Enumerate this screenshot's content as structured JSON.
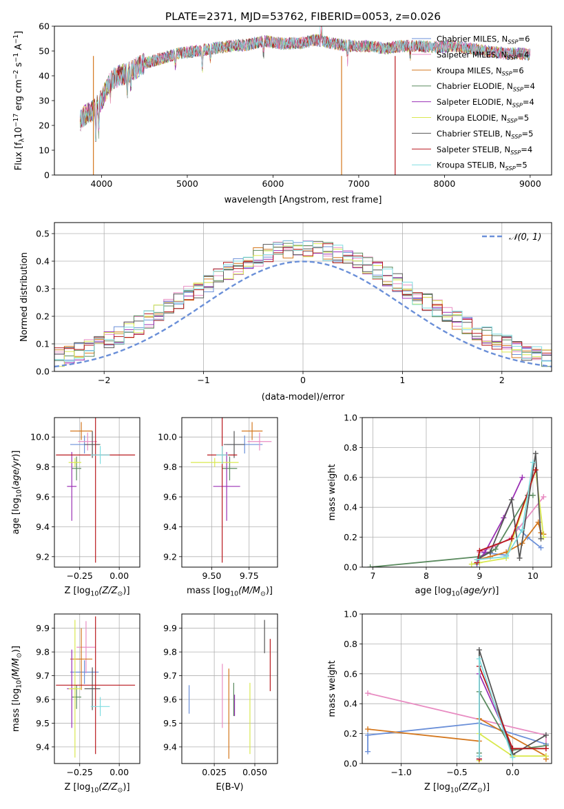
{
  "figure": {
    "title": "PLATE=2371, MJD=53762, FIBERID=0053, z=0.026"
  },
  "legend": [
    {
      "label": "Chabrier MILES, N",
      "sub": "SSP",
      "tail": "=6",
      "color": "#6a8fd8"
    },
    {
      "label": "Salpeter MILES, N",
      "sub": "SSP",
      "tail": "=4",
      "color": "#e88cc2"
    },
    {
      "label": "Kroupa MILES, N",
      "sub": "SSP",
      "tail": "=6",
      "color": "#d4771d"
    },
    {
      "label": "Chabrier ELODIE, N",
      "sub": "SSP",
      "tail": "=4",
      "color": "#5a8a5e"
    },
    {
      "label": "Salpeter ELODIE, N",
      "sub": "SSP",
      "tail": "=4",
      "color": "#9a2fb4"
    },
    {
      "label": "Kroupa ELODIE, N",
      "sub": "SSP",
      "tail": "=5",
      "color": "#d9e84e"
    },
    {
      "label": "Chabrier STELIB, N",
      "sub": "SSP",
      "tail": "=5",
      "color": "#555555"
    },
    {
      "label": "Salpeter STELIB, N",
      "sub": "SSP",
      "tail": "=4",
      "color": "#b8161b"
    },
    {
      "label": "Kroupa STELIB, N",
      "sub": "SSP",
      "tail": "=5",
      "color": "#7fdde0"
    }
  ],
  "chart_data": [
    {
      "id": "spectrum",
      "type": "line",
      "xlabel": "wavelength [Angstrom, rest frame]",
      "ylabel_parts": [
        "Flux [f",
        "λ",
        "10",
        "−17",
        " erg cm",
        "−2",
        " s",
        "−1",
        " A",
        "−1",
        "]"
      ],
      "xlim": [
        3450,
        9250
      ],
      "ylim": [
        0,
        60
      ],
      "xticks": [
        4000,
        5000,
        6000,
        7000,
        8000,
        9000
      ],
      "yticks": [
        0,
        10,
        20,
        30,
        40,
        50,
        60
      ],
      "continuum_x": [
        3750,
        3800,
        3900,
        4000,
        4100,
        4200,
        4300,
        4500,
        4700,
        4900,
        5100,
        5300,
        5500,
        5700,
        5900,
        6100,
        6300,
        6500,
        6700,
        6900,
        7100,
        7300,
        7500,
        7700,
        7900,
        8100,
        8300,
        8500,
        8700,
        8900,
        9000
      ],
      "continuum_y": [
        22,
        24,
        26,
        30,
        38,
        40,
        41,
        45,
        47,
        49,
        50,
        51,
        52,
        52.5,
        54,
        53,
        53,
        54.5,
        53,
        52,
        52,
        51,
        52,
        52,
        51.5,
        52,
        51,
        50,
        49,
        49,
        48.5
      ],
      "drops": [
        {
          "x": 3905,
          "y": 0
        },
        {
          "x": 6800,
          "y": 0
        },
        {
          "x": 7425,
          "y": 0
        }
      ],
      "peak": {
        "x": 6563,
        "y": 62
      }
    },
    {
      "id": "residuals",
      "type": "histogram",
      "xlabel": "(data-model)/error",
      "ylabel": "Normed distribution",
      "xlim": [
        -2.5,
        2.5
      ],
      "ylim": [
        0,
        0.54
      ],
      "xticks": [
        -2,
        -1,
        0,
        1,
        2
      ],
      "xtick_labels": [
        "−2",
        "−1",
        "0",
        "1",
        "2"
      ],
      "yticks": [
        0,
        0.1,
        0.2,
        0.3,
        0.4,
        0.5
      ],
      "ytick_labels": [
        "0.0",
        "0.1",
        "0.2",
        "0.3",
        "0.4",
        "0.5"
      ],
      "bin_width": 0.1,
      "legend_label": "𝒩(0, 1)"
    },
    {
      "id": "age_vs_Z",
      "type": "errorbar",
      "xlabel_parts": [
        "Z [log",
        "10",
        "(Z/Z",
        "⊙",
        ")]"
      ],
      "ylabel_parts": [
        "age  [log",
        "10",
        "(",
        "age/yr",
        ")]"
      ],
      "xlim": [
        -0.41,
        0.13
      ],
      "ylim": [
        9.13,
        10.13
      ],
      "xticks": [
        -0.25,
        0.0
      ],
      "xtick_labels": [
        "−0.25",
        "0.00"
      ],
      "yticks": [
        9.2,
        9.4,
        9.6,
        9.8,
        10.0
      ],
      "ytick_labels": [
        "9.2",
        "9.4",
        "9.6",
        "9.8",
        "10.0"
      ],
      "points": [
        {
          "x": -0.22,
          "xerr": 0.09,
          "y": 9.95,
          "yerr": 0.06
        },
        {
          "x": -0.2,
          "xerr": 0.06,
          "y": 9.97,
          "yerr": 0.06
        },
        {
          "x": -0.24,
          "xerr": 0.07,
          "y": 10.04,
          "yerr": 0.06
        },
        {
          "x": -0.27,
          "xerr": 0.03,
          "y": 9.79,
          "yerr": 0.08
        },
        {
          "x": -0.3,
          "xerr": 0.03,
          "y": 9.67,
          "yerr": 0.23
        },
        {
          "x": -0.28,
          "xerr": 0.04,
          "y": 9.83,
          "yerr": 0.03
        },
        {
          "x": -0.17,
          "xerr": 0.05,
          "y": 9.95,
          "yerr": 0.09
        },
        {
          "x": -0.15,
          "xerr": 0.25,
          "y": 9.88,
          "yerr": 0.72
        },
        {
          "x": -0.12,
          "xerr": 0.06,
          "y": 9.88,
          "yerr": 0.06
        }
      ]
    },
    {
      "id": "age_vs_mass",
      "type": "errorbar",
      "xlabel_parts": [
        "mass [log",
        "10",
        "(M/M",
        "⊙",
        ")]"
      ],
      "xlim": [
        9.3,
        9.94
      ],
      "ylim": [
        9.13,
        10.13
      ],
      "xticks": [
        9.5,
        9.75
      ],
      "xtick_labels": [
        "9.50",
        "9.75"
      ],
      "yticks": [
        9.2,
        9.4,
        9.6,
        9.8,
        10.0
      ],
      "ytick_labels": [
        "9.2",
        "9.4",
        "9.6",
        "9.8",
        "10.0"
      ],
      "points": [
        {
          "x": 9.72,
          "xerr": 0.12,
          "y": 9.95,
          "yerr": 0.06
        },
        {
          "x": 9.82,
          "xerr": 0.08,
          "y": 9.97,
          "yerr": 0.06
        },
        {
          "x": 9.77,
          "xerr": 0.07,
          "y": 10.04,
          "yerr": 0.06
        },
        {
          "x": 9.62,
          "xerr": 0.05,
          "y": 9.79,
          "yerr": 0.08
        },
        {
          "x": 9.6,
          "xerr": 0.09,
          "y": 9.67,
          "yerr": 0.23
        },
        {
          "x": 9.52,
          "xerr": 0.16,
          "y": 9.83,
          "yerr": 0.03
        },
        {
          "x": 9.65,
          "xerr": 0.07,
          "y": 9.95,
          "yerr": 0.09
        },
        {
          "x": 9.57,
          "xerr": 0.1,
          "y": 9.88,
          "yerr": 0.72
        },
        {
          "x": 9.57,
          "xerr": 0.04,
          "y": 9.88,
          "yerr": 0.06
        }
      ]
    },
    {
      "id": "weight_vs_age",
      "type": "line",
      "xlabel_parts": [
        "age  [log",
        "10",
        "(",
        "age/yr",
        ")]"
      ],
      "ylabel": "mass weight",
      "xlim": [
        6.8,
        10.35
      ],
      "ylim": [
        0,
        1
      ],
      "xticks": [
        7,
        8,
        9,
        10
      ],
      "xtick_labels": [
        "7",
        "8",
        "9",
        "10"
      ],
      "yticks": [
        0,
        0.2,
        0.4,
        0.6,
        0.8,
        1.0
      ],
      "ytick_labels": [
        "0.0",
        "0.2",
        "0.4",
        "0.6",
        "0.8",
        "1.0"
      ],
      "series": [
        {
          "x": [
            8.95,
            9.0,
            9.5,
            9.7,
            9.9,
            10.15
          ],
          "y": [
            0.02,
            0.1,
            0.08,
            0.27,
            0.2,
            0.13
          ]
        },
        {
          "x": [
            9.0,
            9.3,
            9.6,
            10.2
          ],
          "y": [
            0.1,
            0.14,
            0.2,
            0.47
          ]
        },
        {
          "x": [
            8.95,
            9.2,
            9.5,
            9.8,
            10.1,
            10.15,
            10.2
          ],
          "y": [
            0.05,
            0.07,
            0.1,
            0.16,
            0.3,
            0.23,
            0.22
          ]
        },
        {
          "x": [
            6.95,
            9.0,
            9.3,
            9.9,
            10.0
          ],
          "y": [
            0.0,
            0.07,
            0.12,
            0.48,
            0.48
          ]
        },
        {
          "x": [
            8.95,
            9.1,
            9.45,
            9.8
          ],
          "y": [
            0.03,
            0.1,
            0.33,
            0.6
          ]
        },
        {
          "x": [
            8.85,
            9.0,
            9.5,
            10.05,
            10.2
          ],
          "y": [
            0.02,
            0.03,
            0.06,
            0.65,
            0.2
          ]
        },
        {
          "x": [
            8.95,
            9.2,
            9.6,
            9.75,
            10.05,
            10.15
          ],
          "y": [
            0.05,
            0.1,
            0.45,
            0.06,
            0.76,
            0.19
          ]
        },
        {
          "x": [
            8.95,
            9.0,
            9.6,
            10.05
          ],
          "y": [
            0.03,
            0.11,
            0.19,
            0.65
          ]
        },
        {
          "x": [
            8.95,
            9.5,
            9.8,
            10.0
          ],
          "y": [
            0.05,
            0.07,
            0.25,
            0.7
          ]
        }
      ]
    },
    {
      "id": "mass_vs_Z",
      "type": "errorbar",
      "xlabel_parts": [
        "Z [log",
        "10",
        "(Z/Z",
        "⊙",
        ")]"
      ],
      "ylabel_parts": [
        "mass [log",
        "10",
        "(M/M",
        "⊙",
        ")]"
      ],
      "xlim": [
        -0.41,
        0.13
      ],
      "ylim": [
        9.33,
        9.96
      ],
      "xticks": [
        -0.25,
        0.0
      ],
      "xtick_labels": [
        "−0.25",
        "0.00"
      ],
      "yticks": [
        9.4,
        9.5,
        9.6,
        9.7,
        9.8,
        9.9
      ],
      "ytick_labels": [
        "9.4",
        "9.5",
        "9.6",
        "9.7",
        "9.8",
        "9.9"
      ],
      "points": [
        {
          "x": -0.22,
          "xerr": 0.09,
          "y": 9.715,
          "yerr": 0.05
        },
        {
          "x": -0.21,
          "xerr": 0.06,
          "y": 9.82,
          "yerr": 0.11
        },
        {
          "x": -0.24,
          "xerr": 0.07,
          "y": 9.77,
          "yerr": 0.13
        },
        {
          "x": -0.27,
          "xerr": 0.03,
          "y": 9.61,
          "yerr": 0.05
        },
        {
          "x": -0.3,
          "xerr": 0.03,
          "y": 9.645,
          "yerr": 0.165
        },
        {
          "x": -0.28,
          "xerr": 0.04,
          "y": 9.645,
          "yerr": 0.29
        },
        {
          "x": -0.17,
          "xerr": 0.05,
          "y": 9.645,
          "yerr": 0.09
        },
        {
          "x": -0.15,
          "xerr": 0.25,
          "y": 9.66,
          "yerr": 0.29
        },
        {
          "x": -0.12,
          "xerr": 0.06,
          "y": 9.57,
          "yerr": 0.04
        }
      ]
    },
    {
      "id": "mass_vs_EBV",
      "type": "errorbar",
      "xlabel": "E(B-V)",
      "xlim": [
        0.005,
        0.064
      ],
      "ylim": [
        9.33,
        9.96
      ],
      "xticks": [
        0.025,
        0.05
      ],
      "xtick_labels": [
        "0.025",
        "0.050"
      ],
      "yticks": [
        9.4,
        9.5,
        9.6,
        9.7,
        9.8,
        9.9
      ],
      "ytick_labels": [
        "9.4",
        "9.5",
        "9.6",
        "9.7",
        "9.8",
        "9.9"
      ],
      "points": [
        {
          "x": 0.0095,
          "xerr": 0,
          "y": 9.6,
          "yerr": 0.06
        },
        {
          "x": 0.03,
          "xerr": 0,
          "y": 9.615,
          "yerr": 0.135
        },
        {
          "x": 0.034,
          "xerr": 0,
          "y": 9.54,
          "yerr": 0.19
        },
        {
          "x": 0.037,
          "xerr": 0,
          "y": 9.6,
          "yerr": 0.07
        },
        {
          "x": 0.0375,
          "xerr": 0,
          "y": 9.575,
          "yerr": 0.045
        },
        {
          "x": 0.047,
          "xerr": 0,
          "y": 9.52,
          "yerr": 0.15
        },
        {
          "x": 0.056,
          "xerr": 0,
          "y": 9.865,
          "yerr": 0.07
        },
        {
          "x": 0.0595,
          "xerr": 0,
          "y": 9.745,
          "yerr": 0.11
        }
      ]
    },
    {
      "id": "weight_vs_Z",
      "type": "line",
      "xlabel_parts": [
        "Z [log",
        "10",
        "(Z/Z",
        "⊙",
        ")]"
      ],
      "ylabel": "mass weight",
      "xlim": [
        -1.35,
        0.35
      ],
      "ylim": [
        0,
        1
      ],
      "xticks": [
        -1.0,
        -0.5,
        0.0
      ],
      "xtick_labels": [
        "−1.0",
        "−0.5",
        "0.0"
      ],
      "yticks": [
        0,
        0.2,
        0.4,
        0.6,
        0.8,
        1.0
      ],
      "ytick_labels": [
        "0.0",
        "0.2",
        "0.4",
        "0.6",
        "0.8",
        "1.0"
      ],
      "series": [
        {
          "x": [
            -1.3,
            -1.3,
            -0.3,
            0.3,
            0.3
          ],
          "y": [
            0.08,
            0.19,
            0.27,
            0.13,
            0.13
          ]
        },
        {
          "x": [
            -1.3,
            0.3,
            0.3
          ],
          "y": [
            0.47,
            0.19,
            0.1
          ]
        },
        {
          "x": [
            -1.3,
            -0.3,
            -0.3,
            0.3,
            0.3
          ],
          "y": [
            0.23,
            0.15,
            0.3,
            0.05,
            0.03
          ]
        },
        {
          "x": [
            -0.3,
            -0.3,
            0.0,
            0.3
          ],
          "y": [
            0.07,
            0.48,
            0.09,
            0.12
          ]
        },
        {
          "x": [
            -0.3,
            -0.3,
            0.0
          ],
          "y": [
            0.03,
            0.6,
            0.1
          ]
        },
        {
          "x": [
            -0.3,
            -0.3,
            0.0,
            0.3
          ],
          "y": [
            0.02,
            0.2,
            0.05,
            0.05
          ]
        },
        {
          "x": [
            -0.3,
            -0.3,
            0.0,
            0.3
          ],
          "y": [
            0.05,
            0.76,
            0.06,
            0.19
          ]
        },
        {
          "x": [
            -0.3,
            -0.3,
            0.0,
            0.3
          ],
          "y": [
            0.03,
            0.65,
            0.1,
            0.1
          ]
        },
        {
          "x": [
            -0.3,
            -0.3,
            0.0
          ],
          "y": [
            0.05,
            0.7,
            0.04
          ]
        }
      ]
    }
  ]
}
